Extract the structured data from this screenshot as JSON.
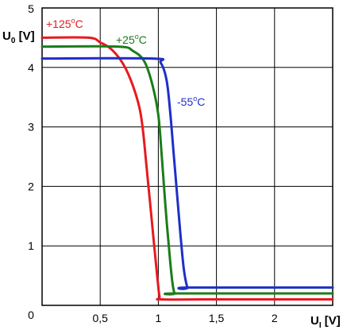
{
  "chart_data": {
    "type": "line",
    "title": "",
    "x_axis": {
      "label_main": "U",
      "label_sub": "I",
      "label_unit": " [V]",
      "min": 0,
      "max": 2.5,
      "gridlines": [
        0.5,
        1,
        1.5,
        2,
        2.5
      ],
      "ticks": [
        {
          "value": 0.5,
          "label": "0,5"
        },
        {
          "value": 1,
          "label": "1"
        },
        {
          "value": 1.5,
          "label": "1,5"
        },
        {
          "value": 2,
          "label": "2"
        }
      ]
    },
    "y_axis": {
      "label_main": "U",
      "label_sub": "0",
      "label_unit": " [V]",
      "min": 0,
      "max": 5,
      "gridlines": [
        1,
        2,
        3,
        4,
        5
      ],
      "ticks": [
        {
          "value": 0,
          "label": "0"
        },
        {
          "value": 1,
          "label": "1"
        },
        {
          "value": 2,
          "label": "2"
        },
        {
          "value": 3,
          "label": "3"
        },
        {
          "value": 4,
          "label": "4"
        },
        {
          "value": 5,
          "label": "5"
        }
      ]
    },
    "grid": true,
    "series": [
      {
        "name": "+125°C",
        "label_prefix": "+125",
        "label_sup": "o",
        "label_suffix": "C",
        "color": "#e8191f",
        "points": [
          [
            0,
            4.5
          ],
          [
            0.4,
            4.5
          ],
          [
            0.5,
            4.42
          ],
          [
            0.6,
            4.3
          ],
          [
            0.7,
            4.05
          ],
          [
            0.78,
            3.7
          ],
          [
            0.84,
            3.3
          ],
          [
            0.87,
            2.9
          ],
          [
            0.9,
            2.3
          ],
          [
            0.93,
            1.7
          ],
          [
            0.96,
            1.1
          ],
          [
            0.99,
            0.5
          ],
          [
            1.01,
            0.15
          ],
          [
            1.03,
            0.1
          ],
          [
            1.5,
            0.1
          ],
          [
            2.5,
            0.1
          ]
        ]
      },
      {
        "name": "+25°C",
        "label_prefix": "+25",
        "label_sup": "o",
        "label_suffix": "C",
        "color": "#1a7d1a",
        "points": [
          [
            0,
            4.35
          ],
          [
            0.65,
            4.35
          ],
          [
            0.78,
            4.28
          ],
          [
            0.88,
            4.1
          ],
          [
            0.95,
            3.7
          ],
          [
            1.0,
            3.2
          ],
          [
            1.03,
            2.5
          ],
          [
            1.06,
            1.7
          ],
          [
            1.09,
            1.0
          ],
          [
            1.12,
            0.4
          ],
          [
            1.14,
            0.2
          ],
          [
            1.16,
            0.2
          ],
          [
            2.5,
            0.2
          ]
        ]
      },
      {
        "name": "-55°C",
        "label_prefix": "-55",
        "label_sup": "o",
        "label_suffix": "C",
        "color": "#1e2fc8",
        "points": [
          [
            0,
            4.15
          ],
          [
            0.95,
            4.15
          ],
          [
            1.02,
            4.08
          ],
          [
            1.07,
            3.8
          ],
          [
            1.1,
            3.3
          ],
          [
            1.13,
            2.6
          ],
          [
            1.16,
            1.9
          ],
          [
            1.19,
            1.2
          ],
          [
            1.22,
            0.6
          ],
          [
            1.25,
            0.3
          ],
          [
            1.27,
            0.3
          ],
          [
            2.5,
            0.3
          ]
        ]
      }
    ]
  }
}
